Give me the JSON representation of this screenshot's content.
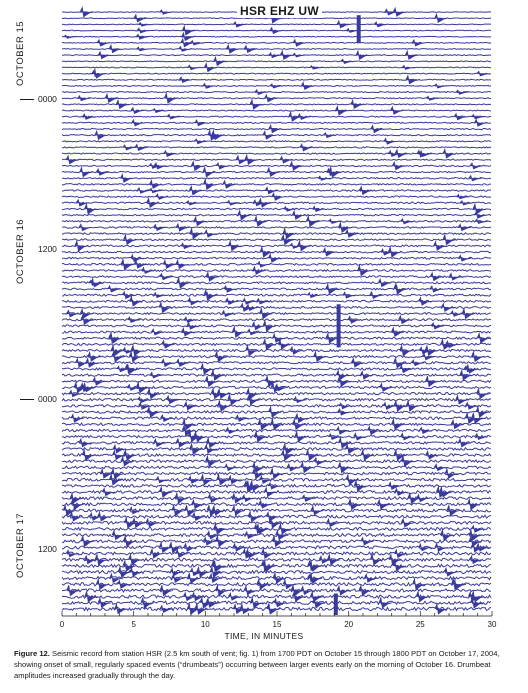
{
  "station": "HSR EHZ UW",
  "chart_data": {
    "type": "line",
    "title": "HSR EHZ UW",
    "xlabel": "TIME, IN MINUTES",
    "xlim": [
      0,
      30
    ],
    "x_ticks": [
      0,
      5,
      10,
      15,
      20,
      25,
      30
    ],
    "time_labels": [
      "0000",
      "1200",
      "0000",
      "1200"
    ],
    "day_labels": [
      "OCTOBER 15",
      "OCTOBER 16",
      "OCTOBER 17"
    ],
    "trace_color": "#3a3a9c",
    "description_series": "helicorder: one trace per 30 minutes, 1700 PDT Oct 15 to 1800 PDT Oct 17"
  },
  "caption": {
    "label": "Figure 12.",
    "text": "Seismic record from station HSR (2.5 km south of vent; fig. 1) from 1700 PDT on October 15 through 1800 PDT on October 17, 2004, showing onset of small, regularly spaced events (“drumbeats”) occurring between larger events early on the morning of October 16. Drumbeat amplitudes increased gradually through the day."
  }
}
